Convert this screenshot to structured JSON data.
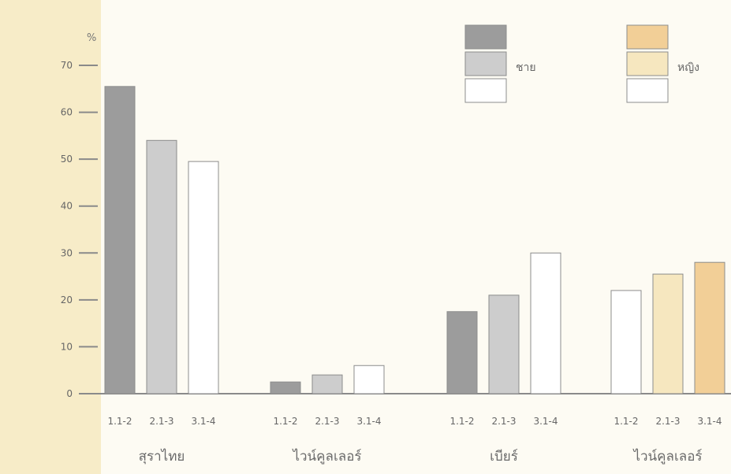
{
  "chart_data": {
    "type": "bar",
    "y_unit": "%",
    "ylim": [
      0,
      70
    ],
    "yticks": [
      0,
      10,
      20,
      30,
      40,
      50,
      60,
      70
    ],
    "grid": false,
    "legend_placement": "top-right",
    "legend": [
      {
        "name": "ชาย",
        "colors": [
          "#9c9c9c",
          "#cdcdcd",
          "#ffffff"
        ]
      },
      {
        "name": "หญิง",
        "colors": [
          "#f2cf97",
          "#f6e7bf",
          "#ffffff"
        ]
      }
    ],
    "groups": [
      {
        "name": "สุราไทย",
        "legend_group": "ชาย",
        "categories": [
          "1.1-2",
          "2.1-3",
          "3.1-4"
        ],
        "values": [
          65.5,
          54,
          49.5
        ],
        "colors": [
          "#9c9c9c",
          "#cdcdcd",
          "#ffffff"
        ]
      },
      {
        "name": "ไวน์คูลเลอร์",
        "legend_group": "ชาย",
        "categories": [
          "1.1-2",
          "2.1-3",
          "3.1-4"
        ],
        "values": [
          2.5,
          4,
          6
        ],
        "colors": [
          "#9c9c9c",
          "#cdcdcd",
          "#ffffff"
        ]
      },
      {
        "name": "เบียร์",
        "legend_group": "ชาย",
        "categories": [
          "1.1-2",
          "2.1-3",
          "3.1-4"
        ],
        "values": [
          17.5,
          21,
          30
        ],
        "colors": [
          "#9c9c9c",
          "#cdcdcd",
          "#ffffff"
        ]
      },
      {
        "name": "ไวน์คูลเลอร์",
        "legend_group": "หญิง",
        "categories": [
          "1.1-2",
          "2.1-3",
          "3.1-4"
        ],
        "values": [
          22,
          25.5,
          28
        ],
        "colors": [
          "#ffffff",
          "#f6e7bf",
          "#f2cf97"
        ]
      }
    ]
  },
  "colors": {
    "left_strip": "#f7ecc8",
    "axis": "#8a8a8a",
    "bar_stroke": "#8c8c8c"
  }
}
